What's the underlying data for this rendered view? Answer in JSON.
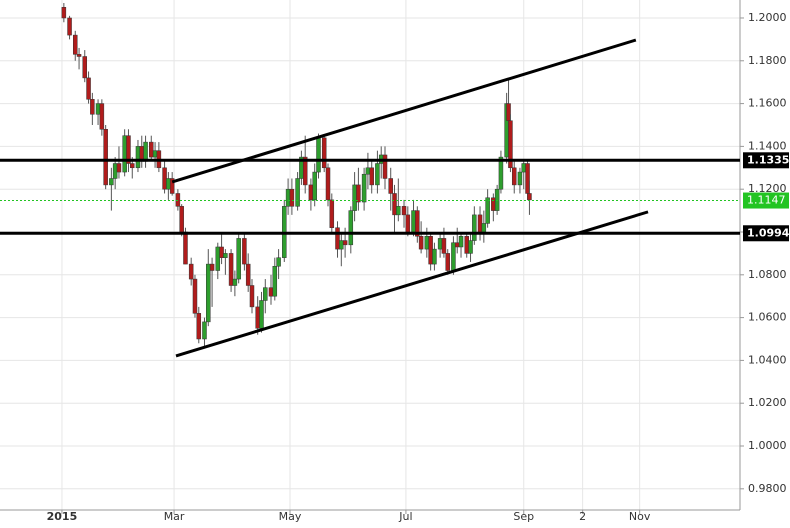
{
  "chart_data": {
    "type": "candlestick",
    "xlim": [
      -32.6,
      356.8
    ],
    "ylim": [
      0.9701,
      1.2084
    ],
    "xticks": [
      {
        "value": 0,
        "label": "2015"
      },
      {
        "value": 59,
        "label": "Mar"
      },
      {
        "value": 120,
        "label": "May"
      },
      {
        "value": 181,
        "label": "Jul"
      },
      {
        "value": 243,
        "label": "Sep"
      },
      {
        "value": 274,
        "label": "2"
      },
      {
        "value": 304,
        "label": "Nov"
      }
    ],
    "yticks": [
      {
        "value": 1.2,
        "label": "1.2000"
      },
      {
        "value": 1.18,
        "label": "1.1800"
      },
      {
        "value": 1.16,
        "label": "1.1600"
      },
      {
        "value": 1.14,
        "label": "1.1400"
      },
      {
        "value": 1.12,
        "label": "1.1200"
      },
      {
        "value": 1.1,
        "label": "1.1000"
      },
      {
        "value": 1.08,
        "label": "1.0800"
      },
      {
        "value": 1.06,
        "label": "1.0600"
      },
      {
        "value": 1.04,
        "label": "1.0400"
      },
      {
        "value": 1.02,
        "label": "1.0200"
      },
      {
        "value": 1.0,
        "label": "1.0000"
      },
      {
        "value": 0.98,
        "label": "0.9800"
      }
    ],
    "grid": true,
    "up_color": "#2e9e2e",
    "down_color": "#b01c1c",
    "x": [
      1,
      4,
      7,
      9,
      12,
      14,
      16,
      19,
      21,
      23,
      26,
      28,
      30,
      33,
      35,
      37,
      40,
      42,
      44,
      47,
      49,
      51,
      54,
      56,
      58,
      61,
      63,
      65,
      68,
      70,
      72,
      75,
      77,
      79,
      82,
      84,
      86,
      89,
      91,
      93,
      96,
      98,
      100,
      103,
      105,
      107,
      110,
      112,
      114,
      117,
      119,
      121,
      124,
      126,
      128,
      131,
      133,
      135,
      138,
      140,
      142,
      145,
      147,
      149,
      152,
      154,
      156,
      159,
      161,
      163,
      166,
      168,
      170,
      173,
      175,
      177,
      180,
      182,
      185,
      187,
      189,
      192,
      194,
      196,
      199,
      201,
      203,
      206,
      208,
      210,
      213,
      215,
      217,
      220,
      222,
      224,
      227,
      229,
      231,
      234,
      235,
      236,
      238,
      241,
      243,
      245,
      246
    ],
    "open": [
      1.205,
      1.2,
      1.192,
      1.183,
      1.182,
      1.172,
      1.162,
      1.155,
      1.16,
      1.148,
      1.122,
      1.125,
      1.132,
      1.128,
      1.145,
      1.132,
      1.13,
      1.14,
      1.133,
      1.142,
      1.135,
      1.138,
      1.13,
      1.12,
      1.125,
      1.118,
      1.112,
      1.1,
      1.085,
      1.078,
      1.062,
      1.05,
      1.058,
      1.085,
      1.082,
      1.093,
      1.088,
      1.09,
      1.075,
      1.078,
      1.097,
      1.085,
      1.075,
      1.065,
      1.055,
      1.068,
      1.074,
      1.07,
      1.084,
      1.088,
      1.112,
      1.12,
      1.112,
      1.125,
      1.135,
      1.122,
      1.115,
      1.128,
      1.144,
      1.13,
      1.115,
      1.102,
      1.092,
      1.096,
      1.094,
      1.11,
      1.122,
      1.114,
      1.127,
      1.13,
      1.122,
      1.132,
      1.136,
      1.125,
      1.118,
      1.108,
      1.112,
      1.108,
      1.1,
      1.11,
      1.098,
      1.092,
      1.098,
      1.085,
      1.092,
      1.097,
      1.09,
      1.082,
      1.095,
      1.093,
      1.098,
      1.09,
      1.096,
      1.108,
      1.1,
      1.104,
      1.116,
      1.11,
      1.12,
      1.135,
      1.16,
      1.152,
      1.13,
      1.122,
      1.128,
      1.132,
      1.118
    ],
    "high": [
      1.207,
      1.201,
      1.194,
      1.186,
      1.185,
      1.175,
      1.165,
      1.162,
      1.162,
      1.15,
      1.13,
      1.135,
      1.14,
      1.148,
      1.148,
      1.135,
      1.143,
      1.145,
      1.145,
      1.145,
      1.142,
      1.142,
      1.133,
      1.128,
      1.128,
      1.12,
      1.113,
      1.102,
      1.088,
      1.08,
      1.065,
      1.06,
      1.092,
      1.088,
      1.095,
      1.1,
      1.092,
      1.092,
      1.082,
      1.1,
      1.1,
      1.09,
      1.078,
      1.07,
      1.072,
      1.078,
      1.08,
      1.088,
      1.092,
      1.115,
      1.125,
      1.125,
      1.128,
      1.138,
      1.145,
      1.125,
      1.132,
      1.146,
      1.145,
      1.132,
      1.118,
      1.105,
      1.1,
      1.102,
      1.112,
      1.128,
      1.13,
      1.13,
      1.137,
      1.134,
      1.138,
      1.14,
      1.14,
      1.13,
      1.122,
      1.125,
      1.115,
      1.112,
      1.115,
      1.112,
      1.105,
      1.102,
      1.1,
      1.095,
      1.1,
      1.102,
      1.092,
      1.098,
      1.102,
      1.1,
      1.1,
      1.1,
      1.112,
      1.112,
      1.11,
      1.12,
      1.118,
      1.122,
      1.138,
      1.165,
      1.171,
      1.155,
      1.133,
      1.13,
      1.134,
      1.133,
      1.124
    ],
    "low": [
      1.198,
      1.19,
      1.18,
      1.176,
      1.17,
      1.16,
      1.15,
      1.15,
      1.145,
      1.12,
      1.11,
      1.12,
      1.125,
      1.126,
      1.128,
      1.125,
      1.128,
      1.13,
      1.13,
      1.133,
      1.13,
      1.128,
      1.118,
      1.115,
      1.117,
      1.11,
      1.098,
      1.085,
      1.075,
      1.06,
      1.048,
      1.046,
      1.056,
      1.065,
      1.078,
      1.085,
      1.08,
      1.072,
      1.07,
      1.076,
      1.082,
      1.072,
      1.062,
      1.052,
      1.053,
      1.062,
      1.066,
      1.068,
      1.078,
      1.086,
      1.108,
      1.108,
      1.11,
      1.122,
      1.118,
      1.11,
      1.112,
      1.125,
      1.128,
      1.112,
      1.1,
      1.088,
      1.084,
      1.088,
      1.09,
      1.105,
      1.11,
      1.11,
      1.12,
      1.118,
      1.118,
      1.125,
      1.12,
      1.11,
      1.1,
      1.105,
      1.102,
      1.098,
      1.098,
      1.095,
      1.09,
      1.088,
      1.082,
      1.082,
      1.088,
      1.088,
      1.08,
      1.08,
      1.09,
      1.088,
      1.088,
      1.086,
      1.094,
      1.096,
      1.095,
      1.102,
      1.105,
      1.108,
      1.118,
      1.132,
      1.148,
      1.128,
      1.118,
      1.118,
      1.12,
      1.115,
      1.108
    ],
    "close": [
      1.2,
      1.192,
      1.183,
      1.182,
      1.172,
      1.162,
      1.155,
      1.16,
      1.148,
      1.122,
      1.125,
      1.132,
      1.128,
      1.145,
      1.132,
      1.13,
      1.14,
      1.133,
      1.142,
      1.135,
      1.138,
      1.13,
      1.12,
      1.125,
      1.118,
      1.112,
      1.1,
      1.085,
      1.078,
      1.062,
      1.05,
      1.058,
      1.085,
      1.082,
      1.093,
      1.088,
      1.09,
      1.075,
      1.078,
      1.097,
      1.085,
      1.075,
      1.065,
      1.055,
      1.068,
      1.074,
      1.07,
      1.084,
      1.088,
      1.112,
      1.12,
      1.112,
      1.125,
      1.135,
      1.122,
      1.115,
      1.128,
      1.144,
      1.13,
      1.115,
      1.102,
      1.092,
      1.096,
      1.094,
      1.11,
      1.122,
      1.114,
      1.127,
      1.13,
      1.122,
      1.132,
      1.136,
      1.125,
      1.118,
      1.108,
      1.112,
      1.108,
      1.1,
      1.11,
      1.098,
      1.092,
      1.098,
      1.085,
      1.092,
      1.097,
      1.09,
      1.082,
      1.095,
      1.093,
      1.098,
      1.09,
      1.096,
      1.108,
      1.1,
      1.104,
      1.116,
      1.11,
      1.12,
      1.135,
      1.16,
      1.152,
      1.13,
      1.122,
      1.128,
      1.132,
      1.118,
      1.115
    ],
    "trendlines": [
      {
        "x": [
          58,
          302
        ],
        "y": [
          1.1234,
          1.1897
        ]
      },
      {
        "x": [
          60,
          308.4
        ],
        "y": [
          1.0421,
          1.1094
        ]
      }
    ],
    "levels": [
      {
        "value": 1.1335,
        "label": "1.1335"
      },
      {
        "value": 1.0994,
        "label": "1.0994"
      }
    ],
    "current_price": {
      "value": 1.1147,
      "label": "1.1147",
      "color": "#22c422"
    }
  }
}
